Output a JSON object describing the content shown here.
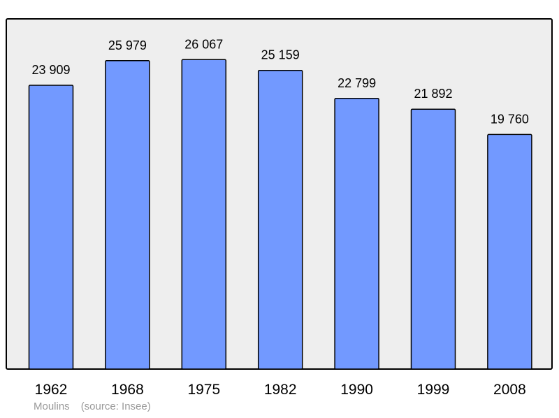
{
  "chart_data": {
    "type": "bar",
    "categories": [
      "1962",
      "1968",
      "1975",
      "1982",
      "1990",
      "1999",
      "2008"
    ],
    "values": [
      23909,
      25979,
      26067,
      25159,
      22799,
      21892,
      19760
    ],
    "value_labels": [
      "23 909",
      "25 979",
      "26 067",
      "25 159",
      "22 799",
      "21 892",
      "19 760"
    ],
    "ylim": [
      0,
      29500
    ],
    "grid": false,
    "colors": {
      "bar": "#7299ff",
      "plot_background": "#eeeeee",
      "frame": "#000000"
    }
  },
  "footer": {
    "place": "Moulins",
    "source": "(source: Insee)"
  }
}
